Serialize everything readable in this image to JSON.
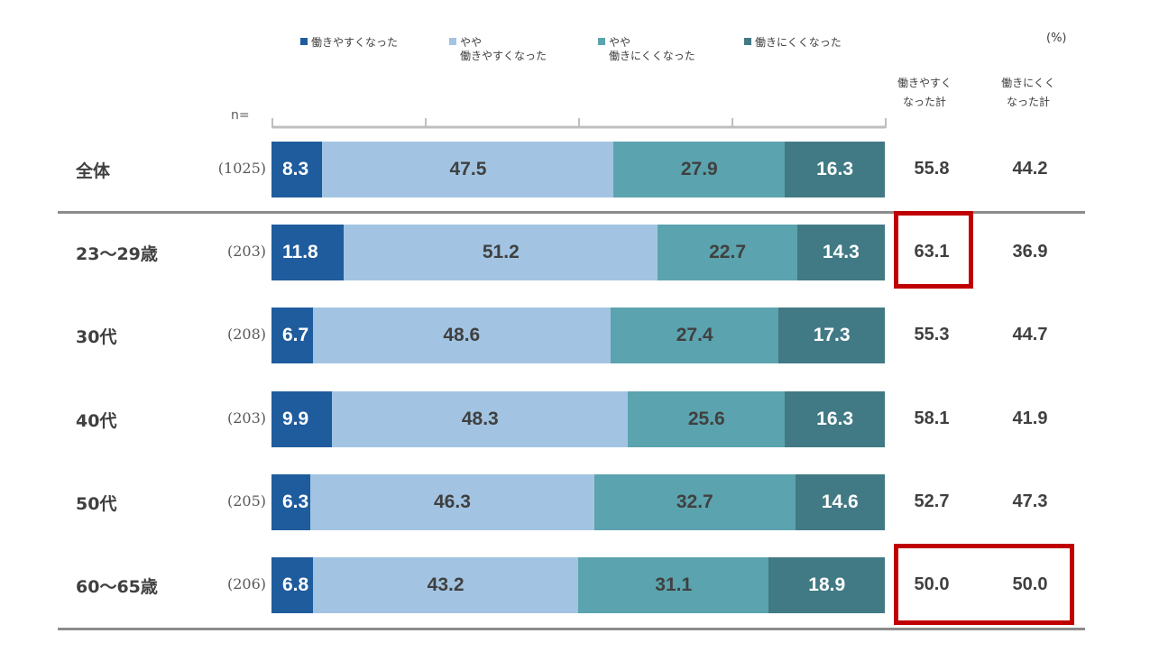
{
  "chart_data": {
    "type": "bar",
    "orientation": "horizontal",
    "stacked": true,
    "unit_label": "(%)",
    "n_label": "n=",
    "xlim": [
      0,
      100
    ],
    "legend_position": "top",
    "series": [
      {
        "name": "働きやすくなった",
        "name_lines": [
          "働きやすくなった"
        ],
        "color": "#1f5c9e",
        "label_color": "#ffffff",
        "values": [
          8.3,
          11.8,
          6.7,
          9.9,
          6.3,
          6.8
        ]
      },
      {
        "name": "やや働きやすくなった",
        "name_lines": [
          "やや",
          "働きやすくなった"
        ],
        "color": "#a2c4e2",
        "label_color": "#404040",
        "values": [
          47.5,
          51.2,
          48.6,
          48.3,
          46.3,
          43.2
        ]
      },
      {
        "name": "やや働きにくくなった",
        "name_lines": [
          "やや",
          "働きにくくなった"
        ],
        "color": "#5ba3ae",
        "label_color": "#404040",
        "values": [
          27.9,
          22.7,
          27.4,
          25.6,
          32.7,
          31.1
        ]
      },
      {
        "name": "働きにくくなった",
        "name_lines": [
          "働きにくくなった"
        ],
        "color": "#417a84",
        "label_color": "#ffffff",
        "values": [
          16.3,
          14.3,
          17.3,
          16.3,
          14.6,
          18.9
        ]
      }
    ],
    "categories": [
      "全体",
      "23～29歳",
      "30代",
      "40代",
      "50代",
      "60～65歳"
    ],
    "n_values": [
      "(1025)",
      "(203)",
      "(208)",
      "(203)",
      "(205)",
      "(206)"
    ],
    "totals": {
      "headers": [
        [
          "働きやすく",
          "なった計"
        ],
        [
          "働きにくく",
          "なった計"
        ]
      ],
      "easier": [
        "55.8",
        "63.1",
        "55.3",
        "58.1",
        "52.7",
        "50.0"
      ],
      "harder": [
        "44.2",
        "36.9",
        "44.7",
        "41.9",
        "47.3",
        "50.0"
      ]
    },
    "highlights": [
      {
        "row": "23～29歳",
        "columns": [
          "easier"
        ],
        "color": "#c00000"
      },
      {
        "row": "60～65歳",
        "columns": [
          "easier",
          "harder"
        ],
        "color": "#c00000"
      }
    ]
  }
}
